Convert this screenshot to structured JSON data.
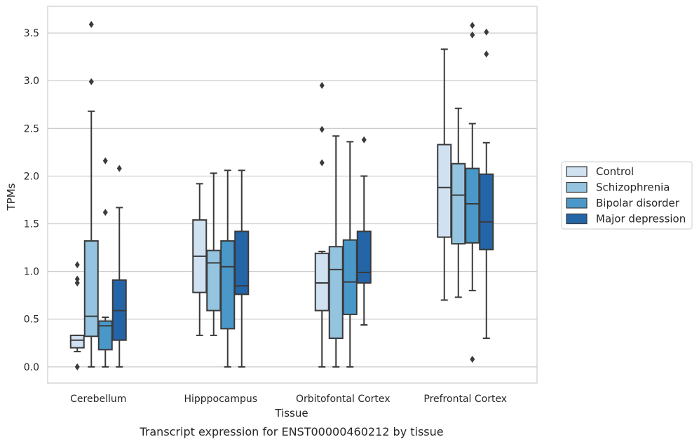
{
  "caption": "Transcript expression for ENST00000460212 by tissue",
  "chart_data": {
    "type": "boxplot",
    "xlabel": "Tissue",
    "ylabel": "TPMs",
    "ylim": [
      -0.17,
      3.78
    ],
    "yticks": [
      0.0,
      0.5,
      1.0,
      1.5,
      2.0,
      2.5,
      3.0,
      3.5
    ],
    "ytick_labels": [
      "0.0",
      "0.5",
      "1.0",
      "1.5",
      "2.0",
      "2.5",
      "3.0",
      "3.5"
    ],
    "categories": [
      "Cerebellum",
      "Hipppocampus",
      "Orbitofontal Cortex",
      "Prefrontal Cortex"
    ],
    "grid": "horizontal",
    "legend_position": "outside-right",
    "series": [
      {
        "name": "Control",
        "color": "#d0e1f2",
        "boxes": [
          {
            "whislo": 0.16,
            "q1": 0.2,
            "med": 0.28,
            "q3": 0.33,
            "whishi": 0.33,
            "fliers": [
              0.0,
              0.88,
              0.92,
              1.07
            ]
          },
          {
            "whislo": 0.33,
            "q1": 0.78,
            "med": 1.16,
            "q3": 1.54,
            "whishi": 1.92,
            "fliers": []
          },
          {
            "whislo": 0.0,
            "q1": 0.59,
            "med": 0.88,
            "q3": 1.19,
            "whishi": 1.21,
            "fliers": [
              2.14,
              2.49,
              2.95
            ]
          },
          {
            "whislo": 0.7,
            "q1": 1.36,
            "med": 1.88,
            "q3": 2.33,
            "whishi": 3.33,
            "fliers": []
          }
        ]
      },
      {
        "name": "Schizophrenia",
        "color": "#94c4df",
        "boxes": [
          {
            "whislo": 0.0,
            "q1": 0.32,
            "med": 0.53,
            "q3": 1.32,
            "whishi": 2.68,
            "fliers": [
              2.99,
              3.59
            ]
          },
          {
            "whislo": 0.33,
            "q1": 0.59,
            "med": 1.09,
            "q3": 1.22,
            "whishi": 2.03,
            "fliers": []
          },
          {
            "whislo": 0.0,
            "q1": 0.3,
            "med": 1.02,
            "q3": 1.26,
            "whishi": 2.42,
            "fliers": []
          },
          {
            "whislo": 0.73,
            "q1": 1.29,
            "med": 1.8,
            "q3": 2.13,
            "whishi": 2.71,
            "fliers": []
          }
        ]
      },
      {
        "name": "Bipolar disorder",
        "color": "#4a98c9",
        "boxes": [
          {
            "whislo": 0.0,
            "q1": 0.18,
            "med": 0.43,
            "q3": 0.48,
            "whishi": 0.52,
            "fliers": [
              1.62,
              2.16
            ]
          },
          {
            "whislo": 0.0,
            "q1": 0.4,
            "med": 1.05,
            "q3": 1.32,
            "whishi": 2.06,
            "fliers": []
          },
          {
            "whislo": 0.0,
            "q1": 0.55,
            "med": 0.89,
            "q3": 1.33,
            "whishi": 2.36,
            "fliers": []
          },
          {
            "whislo": 0.8,
            "q1": 1.3,
            "med": 1.71,
            "q3": 2.08,
            "whishi": 2.55,
            "fliers": [
              0.08,
              3.48,
              3.58
            ]
          }
        ]
      },
      {
        "name": "Major depression",
        "color": "#2465a8",
        "boxes": [
          {
            "whislo": 0.0,
            "q1": 0.28,
            "med": 0.59,
            "q3": 0.91,
            "whishi": 1.67,
            "fliers": [
              2.08
            ]
          },
          {
            "whislo": 0.0,
            "q1": 0.76,
            "med": 0.85,
            "q3": 1.42,
            "whishi": 2.06,
            "fliers": []
          },
          {
            "whislo": 0.44,
            "q1": 0.88,
            "med": 0.99,
            "q3": 1.42,
            "whishi": 2.0,
            "fliers": [
              2.38
            ]
          },
          {
            "whislo": 0.3,
            "q1": 1.23,
            "med": 1.52,
            "q3": 2.02,
            "whishi": 2.35,
            "fliers": [
              3.28,
              3.51
            ]
          }
        ]
      }
    ]
  }
}
